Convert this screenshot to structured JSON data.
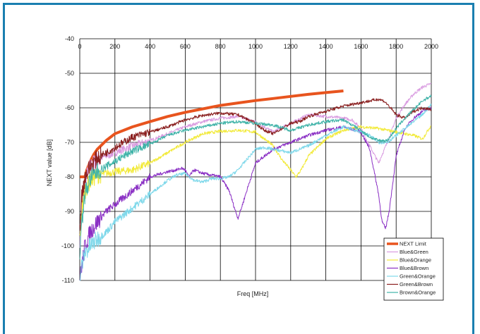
{
  "chart_data": {
    "type": "line",
    "xlabel": "Freq [MHz]",
    "ylabel": "NEXT value [dB]",
    "xlim": [
      0,
      2000
    ],
    "ylim": [
      -110,
      -40
    ],
    "x_ticks": [
      0,
      200,
      400,
      600,
      800,
      1000,
      1200,
      1400,
      1600,
      1800,
      2000
    ],
    "y_ticks": [
      -40,
      -50,
      -60,
      -70,
      -80,
      -90,
      -100,
      -110
    ],
    "grid": true,
    "legend_position": "bottom-right",
    "colors": {
      "frame": "#1a7fb0",
      "grid": "#000000",
      "NEXT Limit": "#e8541e",
      "Blue&Green": "#d99be0",
      "Blue&Orange": "#f2ea3a",
      "Blue&Brown": "#8a2fc4",
      "Green&Orange": "#7ed8ea",
      "Green&Brown": "#8a1f1f",
      "Brown&Orange": "#3fb3a8"
    },
    "series": [
      {
        "name": "NEXT Limit",
        "x": [
          1,
          30,
          40,
          60,
          80,
          100,
          150,
          200,
          300,
          400,
          500,
          600,
          700,
          800,
          900,
          1000,
          1100,
          1200,
          1300,
          1400,
          1500
        ],
        "y": [
          -80,
          -80,
          -78,
          -75.5,
          -73.5,
          -72,
          -69.5,
          -67.5,
          -65.5,
          -64,
          -62.5,
          -61.3,
          -60.3,
          -59.3,
          -58.6,
          -57.9,
          -57.3,
          -56.7,
          -56.1,
          -55.6,
          -55.1
        ]
      },
      {
        "name": "Blue&Green",
        "x": [
          1,
          10,
          30,
          60,
          100,
          200,
          300,
          400,
          500,
          600,
          700,
          800,
          900,
          1000,
          1100,
          1200,
          1300,
          1400,
          1500,
          1550,
          1600,
          1650,
          1700,
          1750,
          1800,
          1850,
          1900,
          1950,
          2000
        ],
        "y": [
          -98,
          -88,
          -81,
          -77,
          -75,
          -73,
          -71,
          -69.5,
          -67.5,
          -65.5,
          -64,
          -63,
          -62.5,
          -64,
          -67,
          -64.5,
          -62,
          -62.5,
          -63,
          -63.5,
          -66,
          -71,
          -76,
          -70,
          -63,
          -59,
          -56,
          -54,
          -53
        ]
      },
      {
        "name": "Blue&Orange",
        "x": [
          1,
          10,
          30,
          60,
          100,
          200,
          300,
          400,
          500,
          600,
          700,
          800,
          900,
          1000,
          1100,
          1150,
          1200,
          1230,
          1260,
          1300,
          1400,
          1500,
          1600,
          1700,
          1800,
          1900,
          1950,
          2000
        ],
        "y": [
          -97,
          -90,
          -84,
          -81,
          -79.5,
          -78.5,
          -78,
          -76,
          -73,
          -70,
          -67.5,
          -66.8,
          -66.5,
          -67,
          -71,
          -75,
          -78,
          -80,
          -78,
          -74,
          -69,
          -66.5,
          -65.5,
          -66,
          -67,
          -68,
          -69,
          -65
        ]
      },
      {
        "name": "Blue&Brown",
        "x": [
          1,
          10,
          30,
          60,
          100,
          150,
          200,
          250,
          300,
          400,
          500,
          550,
          580,
          600,
          620,
          650,
          700,
          750,
          800,
          850,
          880,
          900,
          920,
          950,
          1000,
          1100,
          1200,
          1300,
          1400,
          1500,
          1600,
          1650,
          1700,
          1720,
          1740,
          1760,
          1800,
          1850,
          1900,
          1950,
          2000
        ],
        "y": [
          -110,
          -106,
          -100,
          -96,
          -93,
          -90,
          -88,
          -86,
          -84,
          -80,
          -78.5,
          -78,
          -77.5,
          -78,
          -80,
          -78,
          -79,
          -79.5,
          -80,
          -84,
          -89,
          -92,
          -89,
          -84,
          -76,
          -72,
          -70,
          -68,
          -66.5,
          -65.5,
          -67,
          -72,
          -85,
          -93,
          -95,
          -90,
          -74,
          -66,
          -63,
          -61,
          -60
        ]
      },
      {
        "name": "Green&Orange",
        "x": [
          1,
          10,
          30,
          60,
          100,
          150,
          200,
          300,
          400,
          500,
          550,
          600,
          650,
          700,
          750,
          800,
          850,
          900,
          950,
          1000,
          1050,
          1100,
          1200,
          1300,
          1400,
          1500,
          1600,
          1650,
          1700,
          1750,
          1800,
          1850,
          1900,
          1950,
          2000
        ],
        "y": [
          -110,
          -106,
          -102,
          -100,
          -98,
          -96,
          -93,
          -89,
          -85,
          -81,
          -79.5,
          -79,
          -81,
          -81.5,
          -80.5,
          -80.5,
          -80,
          -78,
          -75,
          -72,
          -71.5,
          -72,
          -73,
          -71,
          -68,
          -65.5,
          -67,
          -68,
          -70,
          -70,
          -68,
          -66,
          -64,
          -62,
          -59
        ]
      },
      {
        "name": "Green&Brown",
        "x": [
          1,
          10,
          30,
          60,
          100,
          200,
          300,
          400,
          500,
          600,
          700,
          800,
          900,
          1000,
          1050,
          1100,
          1150,
          1200,
          1250,
          1300,
          1400,
          1500,
          1600,
          1700,
          1730,
          1750,
          1800,
          1850,
          1900,
          1950,
          2000
        ],
        "y": [
          -95,
          -86,
          -80,
          -77,
          -74.5,
          -71.5,
          -68.5,
          -67,
          -65.5,
          -63.5,
          -62.2,
          -61.5,
          -62,
          -64.5,
          -66.5,
          -67.5,
          -66,
          -64.5,
          -64,
          -62.5,
          -61,
          -59.5,
          -58.5,
          -57.5,
          -58,
          -59,
          -62,
          -63,
          -61,
          -60,
          -60.5
        ]
      },
      {
        "name": "Brown&Orange",
        "x": [
          1,
          10,
          30,
          60,
          100,
          200,
          300,
          400,
          500,
          600,
          700,
          800,
          900,
          1000,
          1100,
          1200,
          1300,
          1400,
          1500,
          1600,
          1650,
          1700,
          1750,
          1800,
          1850,
          1900,
          1950,
          2000
        ],
        "y": [
          -102,
          -94,
          -85,
          -80.5,
          -78.5,
          -75.5,
          -72.5,
          -70.5,
          -68,
          -66.5,
          -65.5,
          -64.5,
          -64,
          -64.5,
          -65,
          -66.5,
          -65,
          -64,
          -63.5,
          -66.5,
          -68.5,
          -69.5,
          -69.5,
          -66,
          -63,
          -60.5,
          -58,
          -56.5
        ]
      }
    ]
  }
}
